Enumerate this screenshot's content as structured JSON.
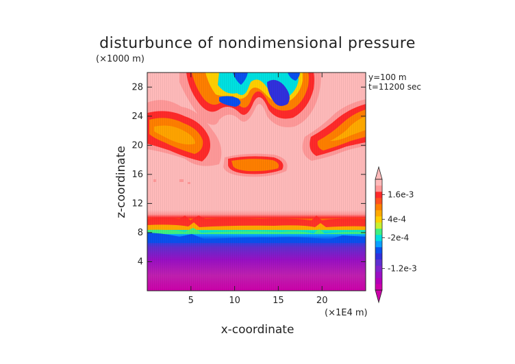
{
  "chart_data": {
    "type": "heatmap",
    "title": "disturbunce of nondimensional pressure",
    "ylabel": "z-coordinate",
    "xlabel": "x-coordinate",
    "y_unit": "(×1000 m)",
    "x_unit": "(×1E4 m)",
    "annotations": [
      "y=100 m",
      "t=11200 sec"
    ],
    "x_range": [
      0,
      25
    ],
    "y_range": [
      0,
      30
    ],
    "x_ticks": [
      5,
      10,
      15,
      20
    ],
    "x_tick_labels": [
      "5",
      "10",
      "15",
      "20"
    ],
    "y_ticks": [
      4,
      8,
      12,
      16,
      20,
      24,
      28
    ],
    "y_tick_labels": [
      "4",
      "8",
      "12",
      "16",
      "20",
      "24",
      "28"
    ],
    "colorbar": {
      "labels": [
        {
          "value": 0.0016,
          "label": "1.6e-3"
        },
        {
          "value": 0.0004,
          "label": "4e-4"
        },
        {
          "value": -0.0002,
          "label": "-2e-4"
        },
        {
          "value": -0.0012,
          "label": "-1.2e-3"
        }
      ],
      "colors": [
        "#cc00aa",
        "#b300b8",
        "#9a10c4",
        "#7f24cc",
        "#5e2fd0",
        "#3030dd",
        "#0a50ee",
        "#0aa0ff",
        "#00e0e0",
        "#40f080",
        "#c8f030",
        "#ffd000",
        "#ffaa00",
        "#ff7f00",
        "#ff5020",
        "#ff2a2a",
        "#ff9999",
        "#ffbaba"
      ]
    },
    "layers": [
      {
        "name": "surface",
        "z_range": [
          0,
          4
        ],
        "level": "min"
      },
      {
        "name": "transition",
        "z_range": [
          4,
          10
        ],
        "level": "strong gradient"
      },
      {
        "name": "background",
        "z_range": [
          10,
          30
        ],
        "level": "max"
      },
      {
        "name": "cell",
        "x_range": [
          10,
          14
        ],
        "z_range": [
          16.5,
          18
        ],
        "level": "moderate"
      },
      {
        "name": "upper-left band",
        "x_range": [
          0,
          7
        ],
        "z_range": [
          20,
          25
        ],
        "level": "moderate"
      },
      {
        "name": "upper-right band",
        "x_range": [
          18,
          25
        ],
        "z_range": [
          20,
          26
        ],
        "level": "moderate"
      },
      {
        "name": "upper minima",
        "x_range": [
          7,
          18
        ],
        "z_range": [
          25,
          30
        ],
        "level": "low"
      }
    ]
  }
}
